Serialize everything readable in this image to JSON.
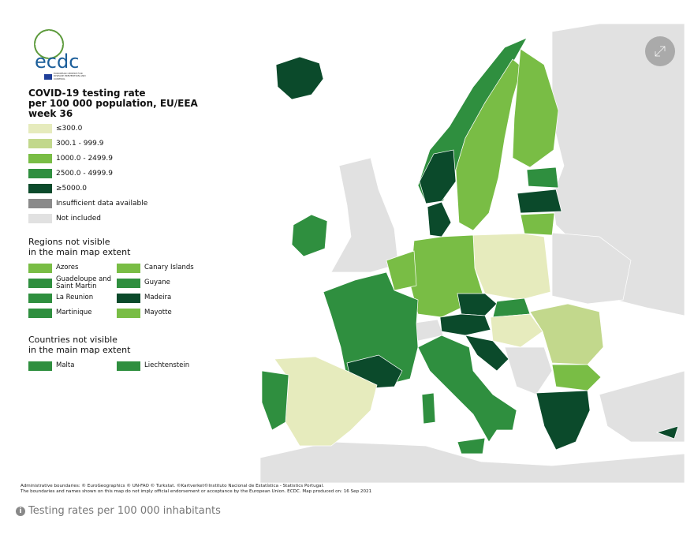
{
  "header": {
    "logo_text": "ecdc",
    "org_text": "EUROPEAN CENTRE FOR DISEASE PREVENTION AND CONTROL"
  },
  "legend": {
    "title": [
      "COVID-19 testing rate",
      "per 100 000 population, EU/EEA",
      "week 36"
    ],
    "items": [
      {
        "label": "≤300.0",
        "color": "#e6ebbd"
      },
      {
        "label": "300.1 - 999.9",
        "color": "#c2d88c"
      },
      {
        "label": "1000.0 - 2499.9",
        "color": "#79bd45"
      },
      {
        "label": "2500.0 - 4999.9",
        "color": "#2f8f3f"
      },
      {
        "label": "≥5000.0",
        "color": "#0b4a2b"
      },
      {
        "label": "Insufficient data available",
        "color": "#8a8a8a"
      },
      {
        "label": "Not included",
        "color": "#e1e1e1"
      }
    ]
  },
  "regions": {
    "title": [
      "Regions not visible",
      "in the main map extent"
    ],
    "items": [
      {
        "label": "Azores",
        "color": "#79bd45"
      },
      {
        "label": "Canary Islands",
        "color": "#79bd45"
      },
      {
        "label": "Guadeloupe and Saint Martin",
        "color": "#2f8f3f"
      },
      {
        "label": "Guyane",
        "color": "#2f8f3f"
      },
      {
        "label": "La Reunion",
        "color": "#2f8f3f"
      },
      {
        "label": "Madeira",
        "color": "#0b4a2b"
      },
      {
        "label": "Martinique",
        "color": "#2f8f3f"
      },
      {
        "label": "Mayotte",
        "color": "#79bd45"
      }
    ]
  },
  "countries": {
    "title": [
      "Countries not visible",
      "in the main map extent"
    ],
    "items": [
      {
        "label": "Malta",
        "color": "#2f8f3f"
      },
      {
        "label": "Liechtenstein",
        "color": "#2f8f3f"
      }
    ]
  },
  "footer": {
    "lines": [
      "Administrative boundaries: © EuroGeographics © UN-FAO © Turkstat. ©Kartverket©Instituto Nacional de Estatística - Statistics Portugal.",
      "The boundaries and names shown on this map do not imply official endorsement or acceptance by the European Union. ECDC. Map produced on: 16 Sep 2021"
    ]
  },
  "caption": "Testing rates per 100 000 inhabitants"
}
